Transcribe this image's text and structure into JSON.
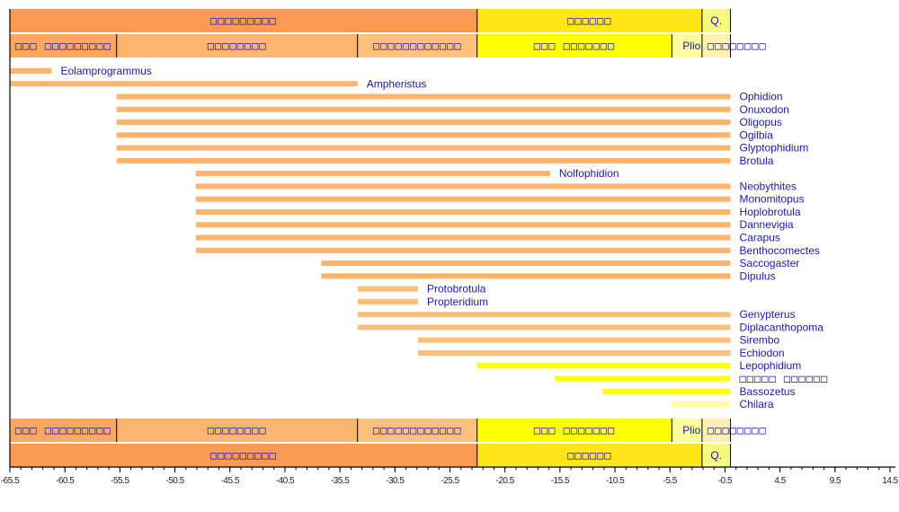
{
  "chart_data": {
    "type": "timeline",
    "title": "",
    "xlabel": "",
    "ylabel": "",
    "xlim": [
      -65.5,
      15
    ],
    "x_ticks": [
      -65.5,
      -60.5,
      -55.5,
      -50.5,
      -45.5,
      -40.5,
      -35.5,
      -30.5,
      -25.5,
      -20.5,
      -15.5,
      -10.5,
      -5.5,
      -0.5,
      4.5,
      9.5,
      14.5
    ],
    "x_tick_labels": [
      "-65.5",
      "-60.5",
      "-55.5",
      "-50.5",
      "-45.5",
      "-40.5",
      "-35.5",
      "-30.5",
      "-25.5",
      "-20.5",
      "-15.5",
      "-10.5",
      "-5.5",
      "-0.5",
      "4.5",
      "9.5",
      "14.5"
    ],
    "minor_tick_step": 1,
    "periods": [
      {
        "label": "□□□□□□□□□",
        "start": -65.5,
        "end": -23.03,
        "color": "#FD9A52"
      },
      {
        "label": "□□□□□□",
        "start": -23.03,
        "end": -2.588,
        "color": "#FFE619"
      },
      {
        "label": "Q.",
        "start": -2.588,
        "end": 0,
        "color": "#F9F97F"
      }
    ],
    "epochs": [
      {
        "label": "□□□ □□□□□□□□□",
        "start": -65.5,
        "end": -55.8,
        "color": "#FDA75F"
      },
      {
        "label": "□□□□□□□□",
        "start": -55.8,
        "end": -33.9,
        "color": "#FDB46C"
      },
      {
        "label": "□□□□□□□□□□□□",
        "start": -33.9,
        "end": -23.03,
        "color": "#FDC07A"
      },
      {
        "label": "□□□ □□□□□□□",
        "start": -23.03,
        "end": -5.332,
        "color": "#FFFF00"
      },
      {
        "label": "Plio.",
        "start": -5.332,
        "end": -2.588,
        "color": "#FFFF99"
      },
      {
        "label": "Pleistocene",
        "start": -2.588,
        "end": 0,
        "color": "#FFF2AE"
      }
    ],
    "epoch_label_overflow": "□□□□□□□□",
    "taxa": [
      {
        "name": "Eolamprogrammus",
        "start": -65.5,
        "end": -61.7,
        "color": "#FDB46C"
      },
      {
        "name": "Ampheristus",
        "start": -65.5,
        "end": -33.9,
        "color": "#FDB46C"
      },
      {
        "name": "Ophidion",
        "start": -55.8,
        "end": 0,
        "color": "#FDB46C"
      },
      {
        "name": "Onuxodon",
        "start": -55.8,
        "end": 0,
        "color": "#FDB46C"
      },
      {
        "name": "Oligopus",
        "start": -55.8,
        "end": 0,
        "color": "#FDB46C"
      },
      {
        "name": "Ogilbia",
        "start": -55.8,
        "end": 0,
        "color": "#FDB46C"
      },
      {
        "name": "Glyptophidium",
        "start": -55.8,
        "end": 0,
        "color": "#FDB46C"
      },
      {
        "name": "Brotula",
        "start": -55.8,
        "end": 0,
        "color": "#FDB46C"
      },
      {
        "name": "Nolfophidion",
        "start": -48.6,
        "end": -16.4,
        "color": "#FDB46C"
      },
      {
        "name": "Neobythites",
        "start": -48.6,
        "end": 0,
        "color": "#FDB46C"
      },
      {
        "name": "Monomitopus",
        "start": -48.6,
        "end": 0,
        "color": "#FDB46C"
      },
      {
        "name": "Hoplobrotula",
        "start": -48.6,
        "end": 0,
        "color": "#FDB46C"
      },
      {
        "name": "Dannevigia",
        "start": -48.6,
        "end": 0,
        "color": "#FDB46C"
      },
      {
        "name": "Carapus",
        "start": -48.6,
        "end": 0,
        "color": "#FDB46C"
      },
      {
        "name": "Benthocomectes",
        "start": -48.6,
        "end": 0,
        "color": "#FDB46C"
      },
      {
        "name": "Saccogaster",
        "start": -37.2,
        "end": 0,
        "color": "#FDB46C"
      },
      {
        "name": "Dipulus",
        "start": -37.2,
        "end": 0,
        "color": "#FDB46C"
      },
      {
        "name": "Protobrotula",
        "start": -33.9,
        "end": -28.4,
        "color": "#FDC07A"
      },
      {
        "name": "Propteridium",
        "start": -33.9,
        "end": -28.4,
        "color": "#FDC07A"
      },
      {
        "name": "Genypterus",
        "start": -33.9,
        "end": 0,
        "color": "#FDC07A"
      },
      {
        "name": "Diplacanthopoma",
        "start": -33.9,
        "end": 0,
        "color": "#FDC07A"
      },
      {
        "name": "Sirembo",
        "start": -28.4,
        "end": 0,
        "color": "#FDC07A"
      },
      {
        "name": "Echiodon",
        "start": -28.4,
        "end": 0,
        "color": "#FDC07A"
      },
      {
        "name": "Lepophidium",
        "start": -23.03,
        "end": 0,
        "color": "#FFFF00"
      },
      {
        "name": "□□□□□ □□□□□□",
        "start": -15.97,
        "end": 0,
        "color": "#FFFF00"
      },
      {
        "name": "Bassozetus",
        "start": -11.608,
        "end": 0,
        "color": "#FFFF00"
      },
      {
        "name": "Chilara",
        "start": -5.332,
        "end": 0,
        "color": "#FFFF99"
      }
    ]
  }
}
